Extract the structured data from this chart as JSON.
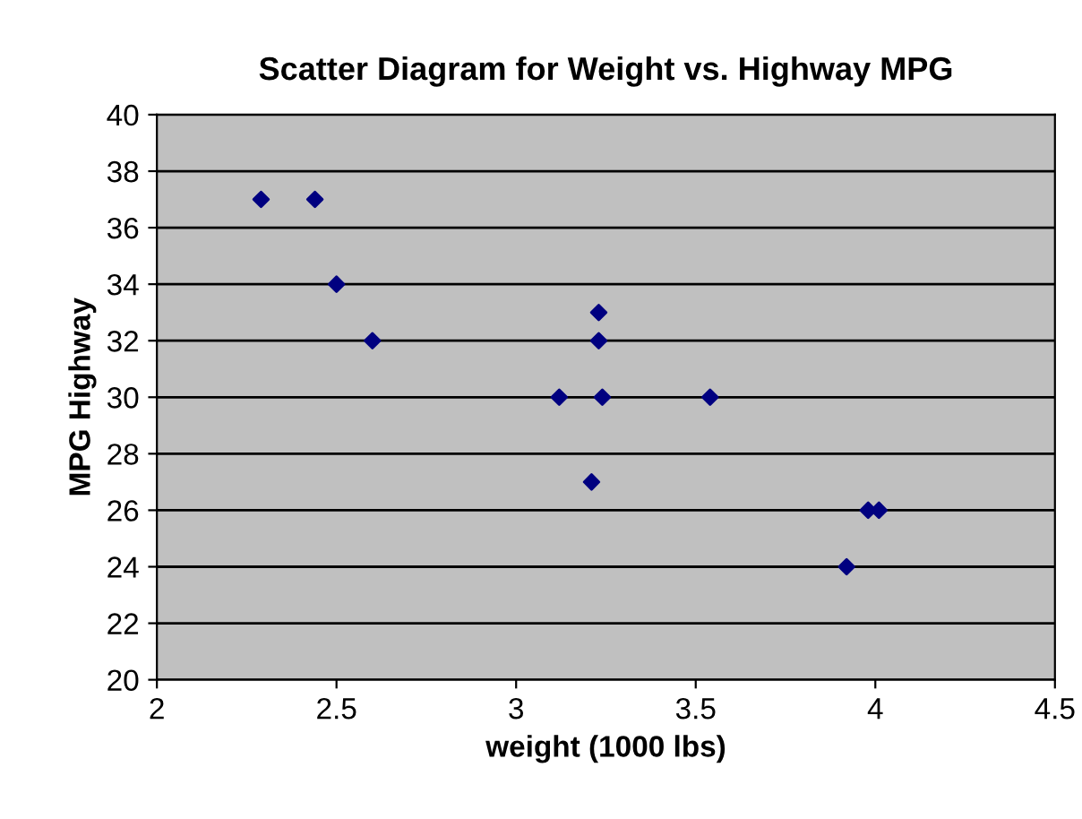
{
  "chart_data": {
    "type": "scatter",
    "title": "Scatter Diagram for Weight vs. Highway MPG",
    "xlabel": "weight (1000 lbs)",
    "ylabel": "MPG Highway",
    "x": [
      2.29,
      2.44,
      2.5,
      2.6,
      3.12,
      3.23,
      3.23,
      3.24,
      3.21,
      3.54,
      3.98,
      4.01,
      3.92
    ],
    "series": [
      {
        "color": "#000080",
        "values": [
          37,
          37,
          34,
          32,
          30,
          33,
          32,
          30,
          27,
          30,
          26,
          26,
          24
        ]
      }
    ],
    "xlim": [
      2,
      4.5
    ],
    "xticks": [
      2,
      2.5,
      3,
      3.5,
      4,
      4.5
    ],
    "ylim": [
      20,
      40
    ],
    "yticks": [
      20,
      22,
      24,
      26,
      28,
      30,
      32,
      34,
      36,
      38,
      40
    ],
    "grid": "y",
    "legend": false,
    "marker": "diamond"
  }
}
